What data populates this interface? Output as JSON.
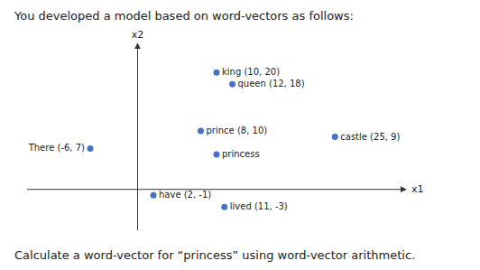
{
  "chart_data": {
    "type": "scatter",
    "title": "You developed a model based on word-vectors as follows:",
    "annotations": [
      "Calculate a word-vector for “princess” using word-vector arithmetic."
    ],
    "x_label": "x1",
    "y_label": "x2",
    "labels": [
      "king (10, 20)",
      "queen (12, 18)",
      "prince (8, 10)",
      "castle (25, 9)",
      "There (-6, 7)",
      "princess",
      "have (2, -1)",
      "lived (11, -3)"
    ],
    "x": [
      10,
      12,
      8,
      25,
      -6,
      10,
      2,
      11
    ],
    "values": [
      20,
      18,
      10,
      9,
      7,
      6,
      -1,
      -3
    ],
    "color": "#4472C4",
    "xlim": [
      -14,
      34
    ],
    "ylim": [
      -7,
      25
    ],
    "xticks": [],
    "yticks": [],
    "tick_labels": false,
    "grid": false
  }
}
